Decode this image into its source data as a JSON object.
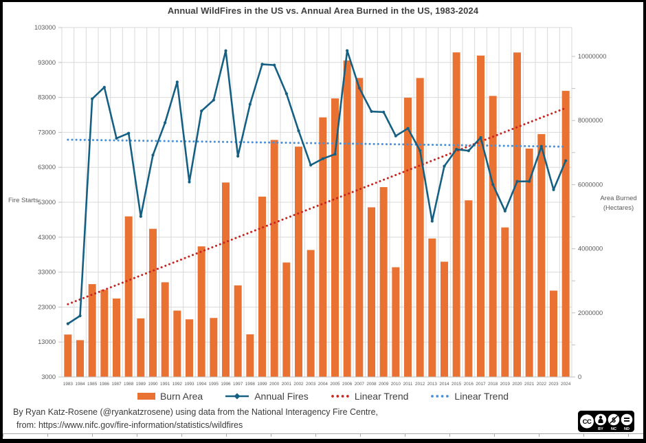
{
  "title": "Annual WildFires in the US vs. Annual Area Burned in the US, 1983-2024",
  "axes": {
    "left": {
      "title": "Fire Starts",
      "tick_labels": [
        "103000",
        "93000",
        "83000",
        "73000",
        "63000",
        "53000",
        "43000",
        "33000",
        "23000",
        "13000",
        "3000"
      ]
    },
    "right": {
      "title_line1": "Area Burned",
      "title_line2": "(Hectares)",
      "tick_labels": [
        "10000000",
        "8000000",
        "6000000",
        "4000000",
        "2000000",
        "0"
      ]
    }
  },
  "legend": {
    "items": [
      "Burn Area",
      "Annual Fires",
      "Linear Trend",
      "Linear Trend"
    ]
  },
  "footer": {
    "line1": "By Ryan Katz-Rosene (@ryankatzrosene) using data from the National Interagency Fire Centre,",
    "line2": "from: https://www.nifc.gov/fire-information/statistics/wildfires"
  },
  "license": {
    "cc_text": "CC",
    "nc_symbol": "$",
    "labels": [
      "BY",
      "NC",
      "ND"
    ]
  },
  "chart_data": {
    "type": "combo-bar-line",
    "title": "Annual WildFires in the US vs. Annual Area Burned in the US, 1983-2024",
    "years": [
      1983,
      1984,
      1985,
      1986,
      1987,
      1988,
      1989,
      1990,
      1991,
      1992,
      1993,
      1994,
      1995,
      1996,
      1997,
      1998,
      1999,
      2000,
      2001,
      2002,
      2003,
      2004,
      2005,
      2006,
      2007,
      2008,
      2009,
      2010,
      2011,
      2012,
      2013,
      2014,
      2015,
      2016,
      2017,
      2018,
      2019,
      2020,
      2021,
      2022,
      2023,
      2024
    ],
    "series": [
      {
        "name": "Burn Area",
        "type": "bar",
        "axis": "right",
        "color": "#E97132",
        "values": [
          1323666,
          1148409,
          2896147,
          2719162,
          2447296,
          5009290,
          1827310,
          4621621,
          2953578,
          2069929,
          1797574,
          4073579,
          1840546,
          6065998,
          2856959,
          1329704,
          5626093,
          7393493,
          3570911,
          7184712,
          3960842,
          8097880,
          8689389,
          9873745,
          9328045,
          5292468,
          5921786,
          3422724,
          8711367,
          9326238,
          4319546,
          3595613,
          10125149,
          5509995,
          10026086,
          8767492,
          4664364,
          10122336,
          7125643,
          7577183,
          2693910,
          8924884
        ]
      },
      {
        "name": "Annual Fires",
        "type": "line",
        "axis": "left",
        "color": "#156082",
        "values": [
          18229,
          20493,
          82591,
          85907,
          71300,
          72750,
          48949,
          66481,
          75754,
          87394,
          58810,
          79107,
          82234,
          96363,
          66196,
          81043,
          92487,
          92250,
          84079,
          73457,
          63629,
          65461,
          66753,
          96385,
          85705,
          78979,
          78792,
          71971,
          74126,
          67774,
          47579,
          63312,
          68151,
          67743,
          71499,
          58083,
          50477,
          58950,
          58985,
          68988,
          56580,
          64897
        ]
      },
      {
        "name": "Linear Trend",
        "type": "dotted-trend",
        "axis": "right",
        "color": "#C8241F",
        "endpoints": [
          2270000,
          8390000
        ]
      },
      {
        "name": "Linear Trend",
        "type": "dotted-trend",
        "axis": "left",
        "color": "#4A90D9",
        "endpoints": [
          70900,
          68900
        ]
      }
    ],
    "left_axis": {
      "label": "Fire Starts",
      "min": 3000,
      "max": 103000,
      "tick_step": 10000
    },
    "right_axis": {
      "label": "Area Burned (Hectares)",
      "min": 0,
      "labeled_max": 10000000,
      "labeled_tick_step": 2000000,
      "minor_tick_step": 1000000
    },
    "grid": true,
    "legend_position": "bottom"
  }
}
